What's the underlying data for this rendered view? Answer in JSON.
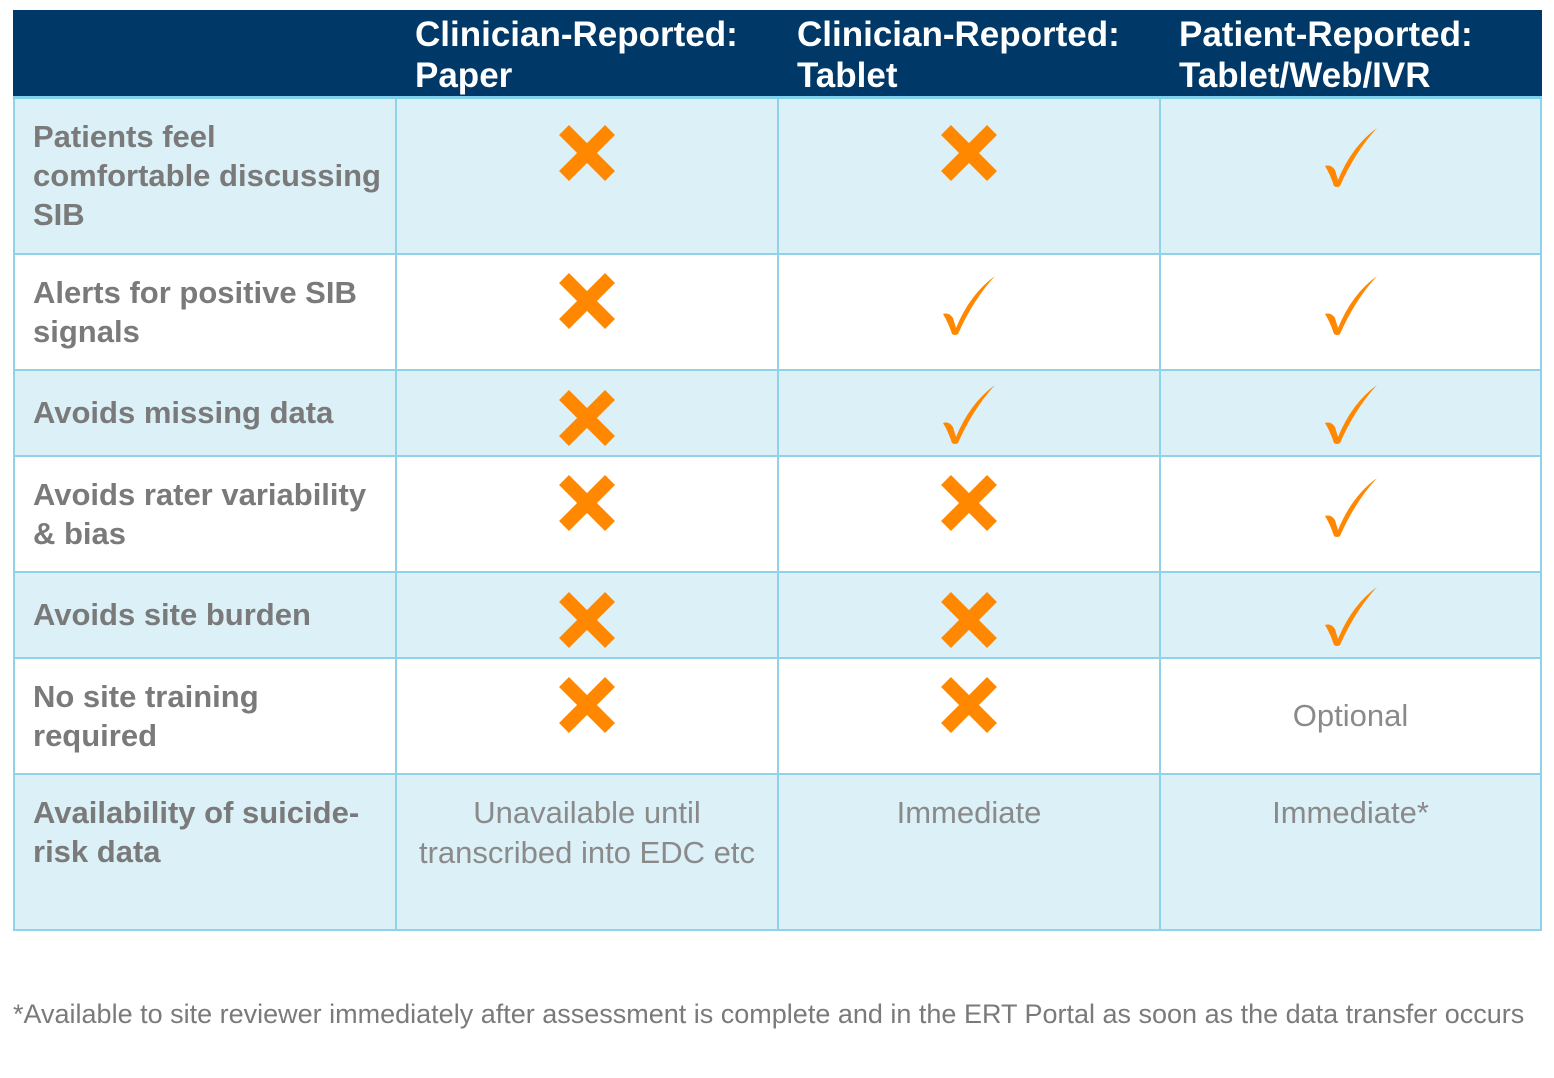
{
  "colors": {
    "header_bg": "#003867",
    "row_shade": "#dbf0f7",
    "border": "#8fd2ea",
    "mark": "#ff8800",
    "label_text": "#7a7a7a"
  },
  "header": {
    "corner": "",
    "columns": [
      "Clinician-Reported: Paper",
      "Clinician-Reported: Tablet",
      "Patient-Reported: Tablet/Web/IVR"
    ]
  },
  "rows": [
    {
      "label": "Patients feel comfortable discussing SIB",
      "cells": [
        {
          "type": "x"
        },
        {
          "type": "x"
        },
        {
          "type": "check"
        }
      ]
    },
    {
      "label": "Alerts for positive SIB signals",
      "cells": [
        {
          "type": "x"
        },
        {
          "type": "check"
        },
        {
          "type": "check"
        }
      ]
    },
    {
      "label": "Avoids missing data",
      "cells": [
        {
          "type": "x"
        },
        {
          "type": "check"
        },
        {
          "type": "check"
        }
      ]
    },
    {
      "label": "Avoids rater variability & bias",
      "cells": [
        {
          "type": "x"
        },
        {
          "type": "x"
        },
        {
          "type": "check"
        }
      ]
    },
    {
      "label": "Avoids site burden",
      "cells": [
        {
          "type": "x"
        },
        {
          "type": "x"
        },
        {
          "type": "check"
        }
      ]
    },
    {
      "label": "No site training required",
      "cells": [
        {
          "type": "x"
        },
        {
          "type": "x"
        },
        {
          "type": "text",
          "text": "Optional"
        }
      ]
    },
    {
      "label": "Availability of suicide-risk data",
      "cells": [
        {
          "type": "text",
          "text": "Unavailable until transcribed into EDC etc"
        },
        {
          "type": "text",
          "text": "Immediate"
        },
        {
          "type": "text",
          "text": "Immediate*"
        }
      ]
    }
  ],
  "footnote": "*Available to site reviewer immediately after assessment is complete and in the ERT Portal as soon as the data transfer occurs"
}
